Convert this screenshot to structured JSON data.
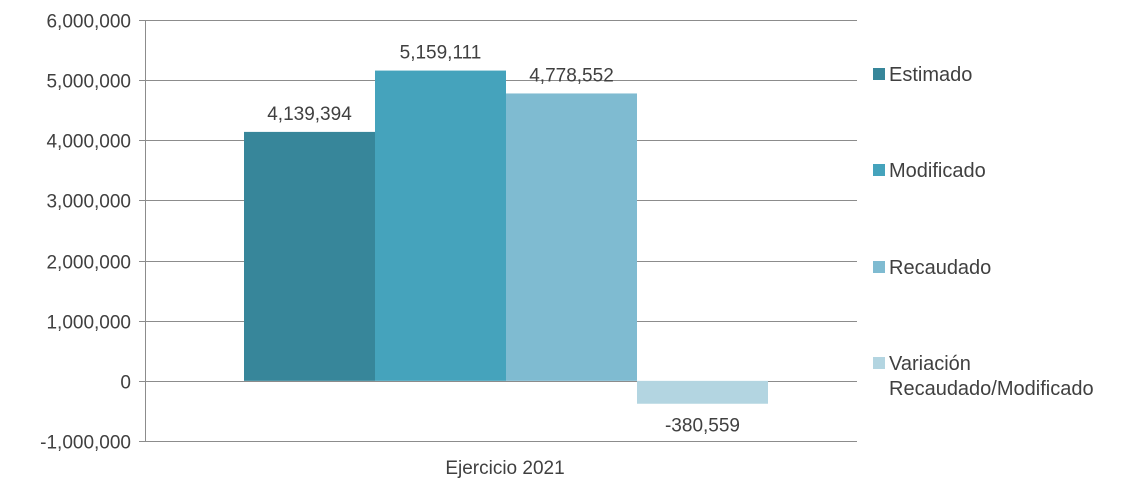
{
  "chart_data": {
    "type": "bar",
    "categories": [
      "Ejercicio 2021"
    ],
    "series": [
      {
        "name": "Estimado",
        "values": [
          4139394
        ],
        "label": "4,139,394",
        "color": "#37869a"
      },
      {
        "name": "Modificado",
        "values": [
          5159111
        ],
        "label": "5,159,111",
        "color": "#45a3bc"
      },
      {
        "name": "Recaudado",
        "values": [
          4778552
        ],
        "label": "4,778,552",
        "color": "#7fbbd1"
      },
      {
        "name": "Variación Recaudado/Modificado",
        "name_lines": [
          "Variación",
          "Recaudado/Modificado"
        ],
        "values": [
          -380559
        ],
        "label": "-380,559",
        "color": "#b3d5e1"
      }
    ],
    "ylim": [
      -1000000,
      6000000
    ],
    "yticks": [
      -1000000,
      0,
      1000000,
      2000000,
      3000000,
      4000000,
      5000000,
      6000000
    ],
    "ytick_labels": [
      "-1,000,000",
      "0",
      "1,000,000",
      "2,000,000",
      "3,000,000",
      "4,000,000",
      "5,000,000",
      "6,000,000"
    ],
    "grid": true,
    "legend_position": "right"
  }
}
